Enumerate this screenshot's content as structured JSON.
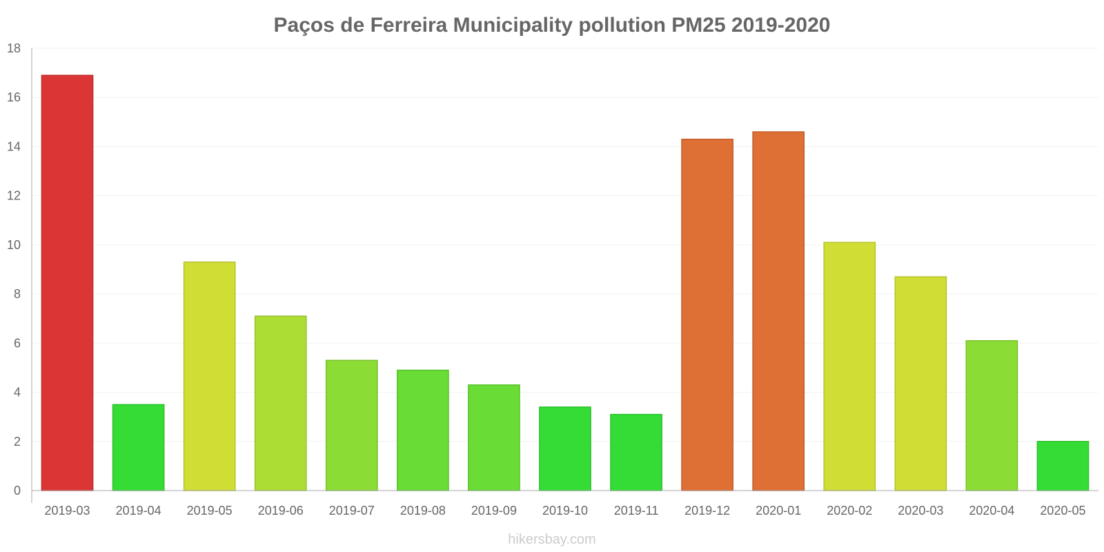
{
  "chart_data": {
    "type": "bar",
    "title": "Paços de Ferreira Municipality pollution PM25 2019-2020",
    "xlabel": "",
    "ylabel": "",
    "ylim": [
      0,
      18
    ],
    "yticks": [
      0,
      2,
      4,
      6,
      8,
      10,
      12,
      14,
      16,
      18
    ],
    "grid": true,
    "categories": [
      "2019-03",
      "2019-04",
      "2019-05",
      "2019-06",
      "2019-07",
      "2019-08",
      "2019-09",
      "2019-10",
      "2019-11",
      "2019-12",
      "2020-01",
      "2020-02",
      "2020-03",
      "2020-04",
      "2020-05"
    ],
    "values": [
      16.9,
      3.5,
      9.3,
      7.1,
      5.3,
      4.9,
      4.3,
      3.4,
      3.1,
      14.3,
      14.6,
      10.1,
      8.7,
      6.1,
      2.0
    ],
    "colors": [
      "#dc3535",
      "#34dc35",
      "#cfdd35",
      "#abdd33",
      "#8bdc35",
      "#69dc35",
      "#69dc35",
      "#34dc35",
      "#34dc35",
      "#de6f35",
      "#de6f35",
      "#cfdd35",
      "#cfdd35",
      "#8bdc35",
      "#34dc35"
    ],
    "borders": [
      "#c12c2c",
      "#2bc12c",
      "#b5c22c",
      "#95c22b",
      "#78c12c",
      "#59c12c",
      "#59c12c",
      "#2bc12c",
      "#2bc12c",
      "#c25d2c",
      "#c25d2c",
      "#b5c22c",
      "#b5c22c",
      "#78c12c",
      "#2bc12c"
    ]
  },
  "watermark": "hikersbay.com"
}
